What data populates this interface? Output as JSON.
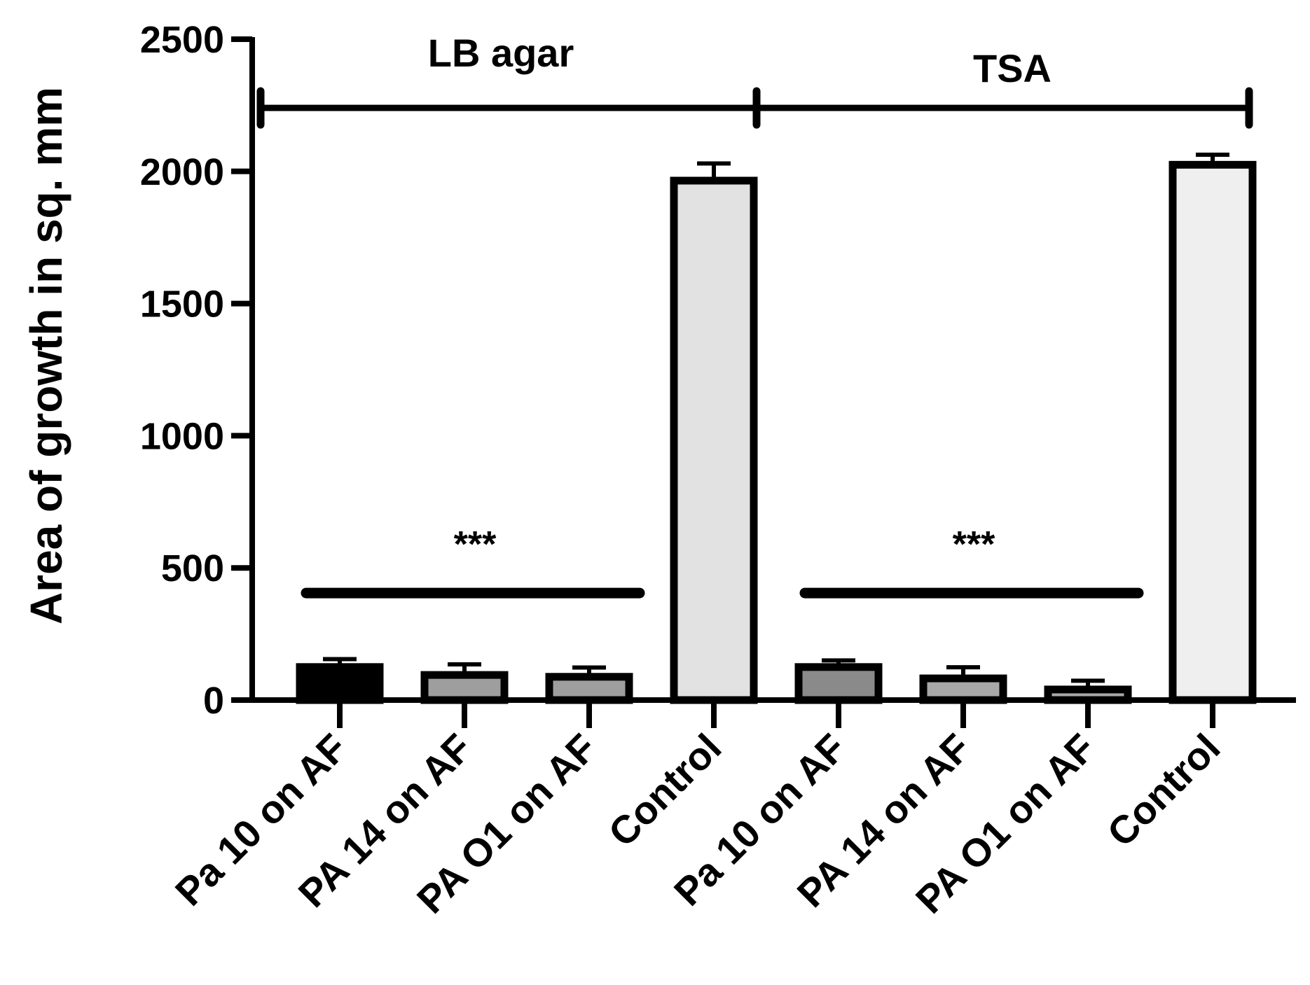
{
  "chart_data": {
    "type": "bar",
    "title": "",
    "xlabel": "",
    "ylabel": "Area of growth in sq. mm",
    "ylim": [
      0,
      2500
    ],
    "yticks": [
      0,
      500,
      1000,
      1500,
      2000,
      2500
    ],
    "grid": false,
    "categories": [
      "Pa 10 on AF",
      "PA 14 on AF",
      "PA O1 on AF",
      "Control",
      "Pa 10 on AF",
      "PA 14 on AF",
      "PA O1 on AF",
      "Control"
    ],
    "values": [
      125,
      95,
      88,
      1965,
      125,
      82,
      40,
      2025
    ],
    "errors": [
      30,
      40,
      35,
      65,
      25,
      42,
      33,
      38
    ],
    "bar_colors": [
      "#000000",
      "#9e9e9e",
      "#9e9e9e",
      "#e2e2e2",
      "#8a8a8a",
      "#a8a8a8",
      "#a8a8a8",
      "#efefef"
    ],
    "groups": [
      {
        "label": "LB agar",
        "from": 0,
        "to": 3
      },
      {
        "label": "TSA",
        "from": 4,
        "to": 7
      }
    ],
    "group_bracket_value": 2240,
    "significance": [
      {
        "label": "***",
        "from": 0,
        "to": 2,
        "line_value": 405
      },
      {
        "label": "***",
        "from": 4,
        "to": 6,
        "line_value": 405
      }
    ]
  }
}
